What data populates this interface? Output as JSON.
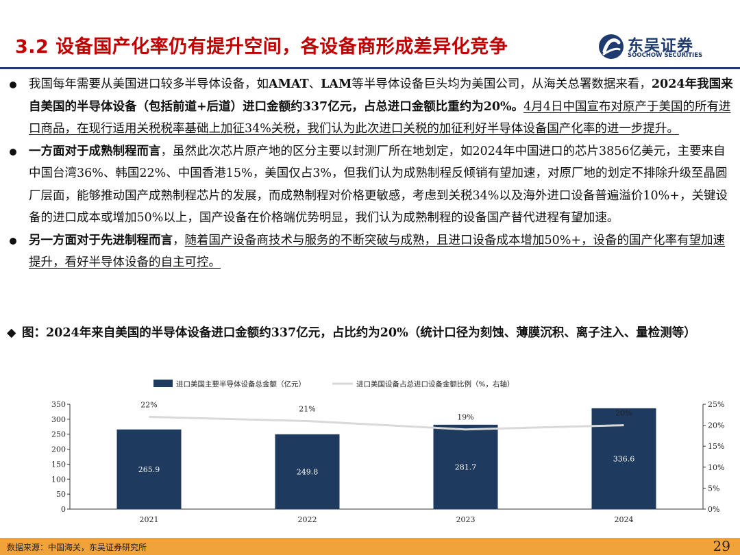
{
  "header": {
    "title": "3.2 设备国产化率仍有提升空间，各设备商形成差异化竞争",
    "logo_name": "东吴证券",
    "logo_sub": "SOOCHOW SECURITIES"
  },
  "bullets": [
    {
      "parts": [
        {
          "text": "我国每年需要从美国进口较多半导体设备，如",
          "style": ""
        },
        {
          "text": "AMAT",
          "style": "b"
        },
        {
          "text": "、",
          "style": ""
        },
        {
          "text": "LAM",
          "style": "b"
        },
        {
          "text": "等半导体设备巨头均为美国公司，从海关总署数据来看，",
          "style": ""
        },
        {
          "text": "2024年我国来自美国的半导体设备（包括前道+后道）进口金额约337亿元，占总进口金额比重约为20%。",
          "style": "b"
        },
        {
          "text": "4月4日中国宣布对原产于美国的所有进口商品，在现行适用关税税率基础上加征34%关税，我们认为此次进口关税的加征利好半导体设备国产化率的进一步提升。",
          "style": "u"
        }
      ]
    },
    {
      "parts": [
        {
          "text": "一方面对于成熟制程而言",
          "style": "b"
        },
        {
          "text": "，虽然此次芯片原产地的区分主要以封测厂所在地划定，如2024年中国进口的芯片3856亿美元，主要来自中国台湾36%、韩国22%、中国香港15%，美国仅占3%，但我们认为成熟制程反倾销有望加速，对原厂地的划定不排除升级至晶圆厂层面，能够推动国产成熟制程芯片的发展，而成熟制程对价格更敏感，考虑到关税34%以及海外进口设备普遍溢价10%+，关键设备的进口成本或增加50%以上，国产设备在价格端优势明显，我们认为成熟制程的设备国产替代进程有望加速。",
          "style": ""
        }
      ]
    },
    {
      "parts": [
        {
          "text": "另一方面对于先进制程而言",
          "style": "b"
        },
        {
          "text": "，",
          "style": ""
        },
        {
          "text": "随着国产设备商技术与服务的不断突破与成熟，且进口设备成本增加50%+，设备的国产化率有望加速提升，看好半导体设备的自主可控。",
          "style": "u"
        }
      ]
    }
  ],
  "figure": {
    "marker": "◆",
    "title": "图：2024年来自美国的半导体设备进口金额约337亿元，占比约为20%（统计口径为刻蚀、薄膜沉积、离子注入、量检测等）"
  },
  "chart_data": {
    "type": "bar",
    "categories": [
      "2021",
      "2022",
      "2023",
      "2024"
    ],
    "series": [
      {
        "name": "进口美国主要半导体设备总金额（亿元）",
        "type": "bar",
        "axis": "left",
        "values": [
          265.9,
          249.8,
          281.7,
          336.6
        ],
        "color": "#1f3a5f"
      },
      {
        "name": "进口美国设备占总进口设备金额比例（%，右轴）",
        "type": "line",
        "axis": "right",
        "values": [
          22,
          21,
          19,
          20
        ],
        "color": "#d9d9d9"
      }
    ],
    "bar_labels": [
      "265.9",
      "249.8",
      "281.7",
      "336.6"
    ],
    "line_labels": [
      "22%",
      "21%",
      "19%",
      "20%"
    ],
    "ylim_left": [
      0,
      350
    ],
    "yticks_left": [
      "0",
      "50",
      "100",
      "150",
      "200",
      "250",
      "300",
      "350"
    ],
    "ylim_right": [
      0,
      25
    ],
    "yticks_right": [
      "0%",
      "5%",
      "10%",
      "15%",
      "20%",
      "25%"
    ],
    "legend_position": "top",
    "grid": false
  },
  "footer": {
    "source": "数据来源：中国海关，东吴证券研究所",
    "page": "29"
  }
}
